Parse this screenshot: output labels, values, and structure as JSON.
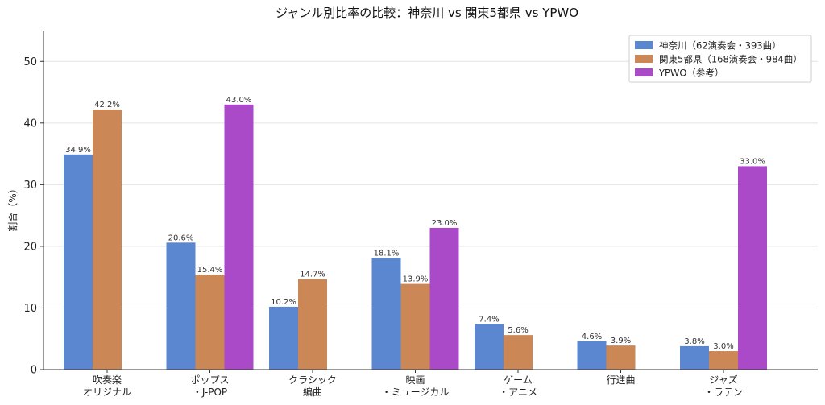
{
  "chart_data": {
    "type": "bar",
    "title": "ジャンル別比率の比較：神奈川 vs 関東5都県 vs YPWO",
    "xlabel": "",
    "ylabel": "割合（%）",
    "ylim": [
      0,
      55
    ],
    "yticks": [
      0,
      10,
      20,
      30,
      40,
      50
    ],
    "grid": "horizontal",
    "legend_position": "top-right",
    "categories": [
      [
        "吹奏楽",
        "オリジナル"
      ],
      [
        "ポップス",
        "・J-POP"
      ],
      [
        "クラシック",
        "編曲"
      ],
      [
        "映画",
        "・ミュージカル"
      ],
      [
        "ゲーム",
        "・アニメ"
      ],
      [
        "行進曲"
      ],
      [
        "ジャズ",
        "・ラテン"
      ]
    ],
    "series": [
      {
        "name": "神奈川（62演奏会・393曲）",
        "color": "#5a87cf",
        "values": [
          34.9,
          20.6,
          10.2,
          18.1,
          7.4,
          4.6,
          3.8
        ],
        "labels": [
          "34.9%",
          "20.6%",
          "10.2%",
          "18.1%",
          "7.4%",
          "4.6%",
          "3.8%"
        ]
      },
      {
        "name": "関東5都県（168演奏会・984曲）",
        "color": "#cc8757",
        "values": [
          42.2,
          15.4,
          14.7,
          13.9,
          5.6,
          3.9,
          3.0
        ],
        "labels": [
          "42.2%",
          "15.4%",
          "14.7%",
          "13.9%",
          "5.6%",
          "3.9%",
          "3.0%"
        ]
      },
      {
        "name": "YPWO（参考）",
        "color": "#ab4ac8",
        "values": [
          null,
          43.0,
          null,
          23.0,
          null,
          null,
          33.0
        ],
        "labels": [
          null,
          "43.0%",
          null,
          "23.0%",
          null,
          null,
          "33.0%"
        ]
      }
    ]
  }
}
